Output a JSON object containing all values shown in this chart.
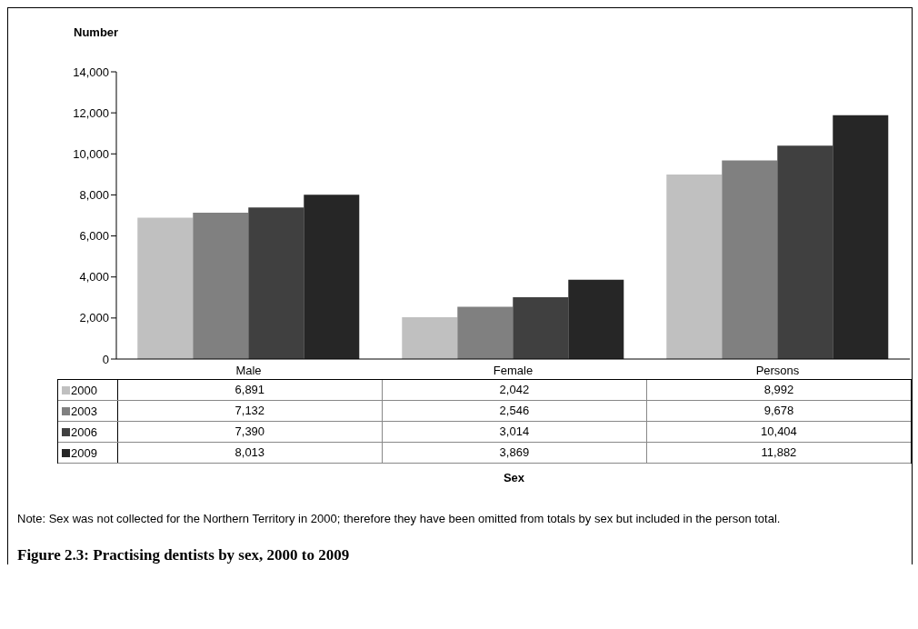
{
  "chart_data": {
    "type": "bar",
    "ylabel": "Number",
    "title": "Figure 2.3: Practising dentists by sex, 2000 to 2009",
    "categories": [
      "Male",
      "Female",
      "Persons"
    ],
    "series": [
      {
        "name": "2000",
        "color": "#c0c0c0",
        "values": [
          6891,
          2042,
          8992
        ],
        "value_labels": [
          "6,891",
          "2,042",
          "8,992"
        ]
      },
      {
        "name": "2003",
        "color": "#808080",
        "values": [
          7132,
          2546,
          9678
        ],
        "value_labels": [
          "7,132",
          "2,546",
          "9,678"
        ]
      },
      {
        "name": "2006",
        "color": "#404040",
        "values": [
          7390,
          3014,
          10404
        ],
        "value_labels": [
          "7,390",
          "3,014",
          "10,404"
        ]
      },
      {
        "name": "2009",
        "color": "#262626",
        "values": [
          8013,
          3869,
          11882
        ],
        "value_labels": [
          "8,013",
          "3,869",
          "11,882"
        ]
      }
    ],
    "ylim": [
      0,
      14000
    ],
    "yticks": [
      0,
      {
        "value": 2000,
        "label": "2,000"
      },
      {
        "value": 4000,
        "label": "4,000"
      },
      {
        "value": 6000,
        "label": "6,000"
      },
      {
        "value": 8000,
        "label": "8,000"
      },
      {
        "value": 10000,
        "label": "10,000"
      },
      {
        "value": 12000,
        "label": "12,000"
      },
      {
        "value": 14000,
        "label": "14,000"
      }
    ],
    "grid": false,
    "legend": "bottom",
    "annotations": [
      "Sex",
      "Note:  Sex was not collected for the Northern Territory in 2000; therefore they have been omitted from totals by sex but included in the person total."
    ]
  }
}
